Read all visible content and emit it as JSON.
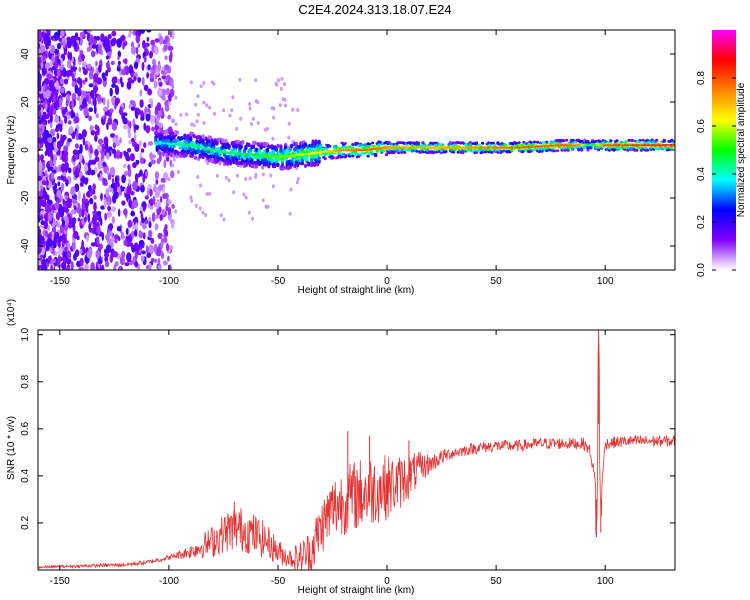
{
  "title": "C2E4.2024.313.18.07.E24",
  "chart_data": [
    {
      "type": "heatmap",
      "xlabel": "Height of straight line (km)",
      "ylabel": "Frequency (Hz)",
      "xlim": [
        -160,
        132
      ],
      "ylim": [
        -50,
        50
      ],
      "x_ticks": [
        -150,
        -100,
        -50,
        0,
        50,
        100
      ],
      "y_ticks": [
        40,
        20,
        0,
        -20,
        -40
      ],
      "colorbar": {
        "label": "Normalized spectral amplitude",
        "range": [
          0,
          1
        ],
        "ticks": [
          "0.0",
          "0.2",
          "0.4",
          "0.6",
          "0.8"
        ],
        "colors": [
          "#ffffff",
          "#8000ff",
          "#0000ff",
          "#00ffff",
          "#00ff00",
          "#ffff00",
          "#ff8000",
          "#ff0000",
          "#ff00ff"
        ]
      },
      "ridge": {
        "x": [
          -105,
          -90,
          -75,
          -60,
          -50,
          -40,
          -30,
          -20,
          -10,
          0,
          20,
          40,
          60,
          80,
          88,
          93,
          100,
          132
        ],
        "freq_hz": [
          3,
          2,
          -1,
          -2,
          -3,
          -2,
          -1,
          0,
          0,
          1,
          1,
          1,
          1,
          2,
          2,
          2,
          2,
          2
        ],
        "amplitude": [
          0.4,
          0.45,
          0.45,
          0.5,
          0.55,
          0.6,
          0.65,
          0.75,
          0.8,
          0.75,
          0.7,
          0.75,
          0.8,
          0.8,
          0.75,
          0.4,
          0.8,
          0.85
        ]
      },
      "noise_region_x": [
        -160,
        -100
      ]
    },
    {
      "type": "line",
      "xlabel": "Height of straight line (km)",
      "ylabel": "SNR (10 * v/v)",
      "y_multiplier": "(x10⁴)",
      "xlim": [
        -160,
        132
      ],
      "ylim": [
        0,
        1.02
      ],
      "x_ticks": [
        -150,
        -100,
        -50,
        0,
        50,
        100
      ],
      "y_ticks": [
        "1.0",
        "0.8",
        "0.6",
        "0.4",
        "0.2"
      ],
      "color": "#e83030",
      "envelope": {
        "x": [
          -160,
          -120,
          -110,
          -100,
          -90,
          -80,
          -75,
          -70,
          -65,
          -60,
          -55,
          -50,
          -45,
          -40,
          -35,
          -30,
          -25,
          -20,
          -15,
          -10,
          -5,
          0,
          5,
          10,
          15,
          20,
          25,
          30,
          40,
          50,
          60,
          70,
          80,
          90,
          93,
          95,
          96,
          97,
          98,
          100,
          110,
          120,
          132
        ],
        "y": [
          0.01,
          0.02,
          0.03,
          0.05,
          0.07,
          0.1,
          0.13,
          0.15,
          0.14,
          0.12,
          0.1,
          0.06,
          0.04,
          0.03,
          0.05,
          0.15,
          0.22,
          0.25,
          0.27,
          0.28,
          0.3,
          0.31,
          0.33,
          0.37,
          0.41,
          0.44,
          0.47,
          0.49,
          0.51,
          0.52,
          0.52,
          0.53,
          0.53,
          0.53,
          0.5,
          0.4,
          0.3,
          0.62,
          0.3,
          0.53,
          0.54,
          0.54,
          0.54
        ]
      },
      "noise_amplitude": {
        "x": [
          -160,
          -100,
          -90,
          -80,
          -70,
          -60,
          -45,
          -35,
          -25,
          -10,
          0,
          10,
          20,
          30,
          132
        ],
        "y": [
          0.005,
          0.01,
          0.03,
          0.07,
          0.1,
          0.09,
          0.04,
          0.1,
          0.14,
          0.16,
          0.14,
          0.1,
          0.04,
          0.025,
          0.025
        ]
      },
      "peaks": [
        {
          "x": -70,
          "y": 0.29
        },
        {
          "x": -18,
          "y": 0.59
        },
        {
          "x": -8,
          "y": 0.57
        },
        {
          "x": 10,
          "y": 0.55
        },
        {
          "x": 97,
          "y": 1.02
        },
        {
          "x": 96,
          "y": 0.14
        },
        {
          "x": 98,
          "y": 0.16
        }
      ]
    }
  ]
}
